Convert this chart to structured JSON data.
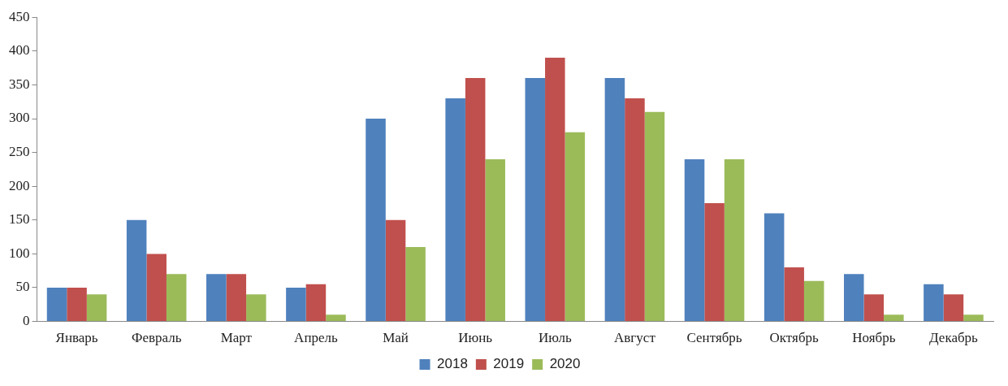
{
  "chart_data": {
    "type": "bar",
    "categories": [
      "Январь",
      "Февраль",
      "Март",
      "Апрель",
      "Май",
      "Июнь",
      "Июль",
      "Август",
      "Сентябрь",
      "Октябрь",
      "Ноябрь",
      "Декабрь"
    ],
    "series": [
      {
        "name": "2018",
        "color": "#4f81bd",
        "values": [
          50,
          150,
          70,
          50,
          300,
          330,
          360,
          360,
          240,
          160,
          70,
          55
        ]
      },
      {
        "name": "2019",
        "color": "#c0504d",
        "values": [
          50,
          100,
          70,
          55,
          150,
          360,
          390,
          330,
          175,
          80,
          40,
          40
        ]
      },
      {
        "name": "2020",
        "color": "#9bbb59",
        "values": [
          40,
          70,
          40,
          10,
          110,
          240,
          280,
          310,
          240,
          60,
          10,
          10
        ]
      }
    ],
    "ylim": [
      0,
      450
    ],
    "yticks": [
      0,
      50,
      100,
      150,
      200,
      250,
      300,
      350,
      400,
      450
    ],
    "grid": false,
    "legend": "bottom"
  }
}
